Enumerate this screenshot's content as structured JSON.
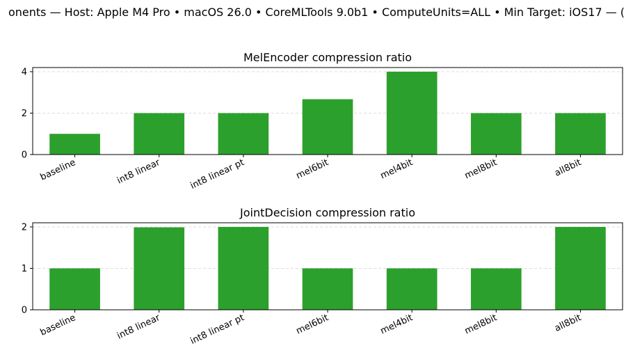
{
  "suptitle": "onents — Host: Apple M4 Pro • macOS 26.0 • CoreMLTools 9.0b1 • ComputeUnits=ALL • Min Target: iOS17 — (",
  "colors": {
    "bar": "#2ca02c",
    "grid": "#dddddd",
    "axis": "#000000"
  },
  "chart_data": [
    {
      "type": "bar",
      "title": "MelEncoder compression ratio",
      "categories": [
        "baseline",
        "int8 linear",
        "int8 linear pt",
        "mel6bit",
        "mel4bit",
        "mel8bit",
        "all8bit"
      ],
      "values": [
        1.0,
        2.0,
        2.0,
        2.67,
        4.0,
        2.0,
        2.0
      ],
      "ylim": [
        0,
        4.2
      ],
      "yticks": [
        0,
        2,
        4
      ],
      "grid": "y-dashed",
      "xlabel": "",
      "ylabel": ""
    },
    {
      "type": "bar",
      "title": "JointDecision compression ratio",
      "categories": [
        "baseline",
        "int8 linear",
        "int8 linear pt",
        "mel6bit",
        "mel4bit",
        "mel8bit",
        "all8bit"
      ],
      "values": [
        1.0,
        1.99,
        2.0,
        1.0,
        1.0,
        1.0,
        2.0
      ],
      "ylim": [
        0,
        2.1
      ],
      "yticks": [
        0,
        1,
        2
      ],
      "grid": "y-dashed",
      "xlabel": "",
      "ylabel": ""
    }
  ]
}
